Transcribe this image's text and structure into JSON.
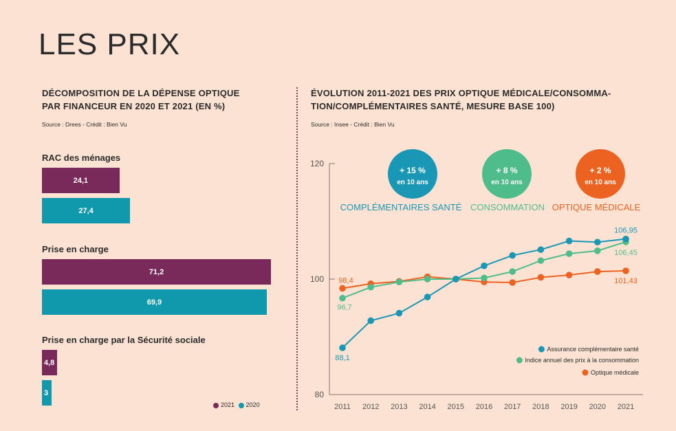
{
  "page_title": "LES PRIX",
  "left": {
    "title_line1": "DÉCOMPOSITION DE LA DÉPENSE OPTIQUE",
    "title_line2": "PAR FINANCEUR EN 2020 ET 2021 (EN %)",
    "source": "Source : Drees - Crédit : Bien Vu"
  },
  "right": {
    "title_line1": "ÉVOLUTION 2011-2021 DES PRIX OPTIQUE MÉDICALE/CONSOMMA-",
    "title_line2": "TION/COMPLÉMENTAIRES SANTÉ, MESURE BASE 100)",
    "source": "Source : Insee - Crédit : Bien Vu"
  },
  "colors": {
    "background": "#fce2d2",
    "y2021": "#7a2a5a",
    "y2020": "#1098ac",
    "complementaire": "#1a97b5",
    "consommation": "#4fbd8b",
    "optique": "#ec6220",
    "text": "#2b2b2b"
  },
  "chart_data": [
    {
      "type": "bar",
      "orientation": "horizontal",
      "title": "DÉCOMPOSITION DE LA DÉPENSE OPTIQUE PAR FINANCEUR EN 2020 ET 2021 (EN %)",
      "categories": [
        "RAC des ménages",
        "Prise en charge",
        "Prise en charge par la Sécurité sociale"
      ],
      "series": [
        {
          "name": "2021",
          "values": [
            24.1,
            71.2,
            4.8
          ],
          "labels": [
            "24,1",
            "71,2",
            "4,8"
          ]
        },
        {
          "name": "2020",
          "values": [
            27.4,
            69.9,
            3
          ],
          "labels": [
            "27,4",
            "69,9",
            "3"
          ]
        }
      ],
      "legend": "bottom-right"
    },
    {
      "type": "line",
      "title": "ÉVOLUTION 2011-2021 DES PRIX OPTIQUE MÉDICALE/CONSOMMATION/COMPLÉMENTAIRES SANTÉ, MESURE BASE 100)",
      "x": [
        2011,
        2012,
        2013,
        2014,
        2015,
        2016,
        2017,
        2018,
        2019,
        2020,
        2021
      ],
      "ylim": [
        80,
        120
      ],
      "yticks": [
        "80",
        "100",
        "120"
      ],
      "series": [
        {
          "name": "Assurance complémentaire santé",
          "color": "#1a97b5",
          "values": [
            88.1,
            92.8,
            94.1,
            96.9,
            100,
            102.3,
            104.1,
            105.1,
            106.6,
            106.4,
            106.95
          ]
        },
        {
          "name": "Indice annuel des prix à  la consommation",
          "color": "#4fbd8b",
          "values": [
            96.7,
            98.6,
            99.5,
            100,
            100,
            100.2,
            101.3,
            103.2,
            104.4,
            104.9,
            106.45
          ]
        },
        {
          "name": "Optique médicale",
          "color": "#ec6220",
          "values": [
            98.4,
            99.2,
            99.6,
            100.4,
            100,
            99.5,
            99.4,
            100.3,
            100.7,
            101.3,
            101.43
          ]
        }
      ],
      "point_labels": [
        {
          "text": "88,1",
          "series": 0,
          "index": 0
        },
        {
          "text": "106,95",
          "series": 0,
          "index": 10
        },
        {
          "text": "96,7",
          "series": 1,
          "index": 0
        },
        {
          "text": "106,45",
          "series": 1,
          "index": 10
        },
        {
          "text": "98,4",
          "series": 2,
          "index": 0
        },
        {
          "text": "101,43",
          "series": 2,
          "index": 10
        }
      ],
      "callouts": [
        {
          "pct": "+ 15 %",
          "sub": "en 10 ans",
          "name": "COMPLÉMENTAIRES SANTÉ",
          "color": "#1a97b5"
        },
        {
          "pct": "+ 8 %",
          "sub": "en 10 ans",
          "name": "CONSOMMATION",
          "color": "#4fbd8b"
        },
        {
          "pct": "+ 2 %",
          "sub": "en 10 ans",
          "name": "OPTIQUE MÉDICALE",
          "color": "#ec6220"
        }
      ],
      "legend": "bottom-right"
    }
  ]
}
